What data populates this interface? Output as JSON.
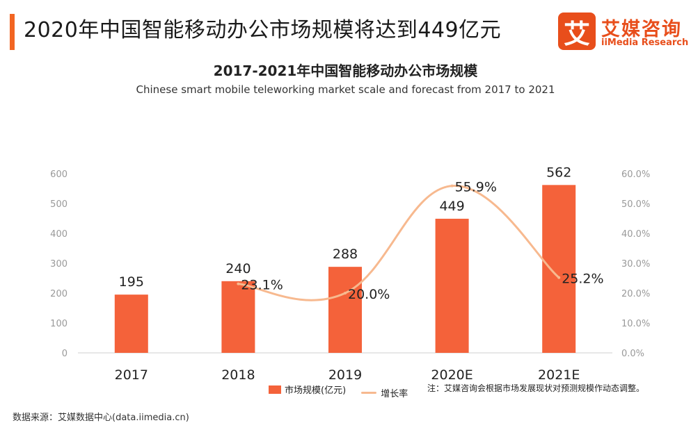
{
  "header": {
    "headline": "2020年中国智能移动办公市场规模将达到449亿元",
    "accent_color": "#f26522"
  },
  "logo": {
    "mark": "艾",
    "name_cn": "艾媒咨询",
    "name_en": "iiMedia Research",
    "color": "#e84e1b"
  },
  "chart_data": {
    "type": "bar",
    "title": "2017-2021年中国智能移动办公市场规模",
    "subtitle": "Chinese smart mobile teleworking market scale and forecast from 2017 to 2021",
    "categories": [
      "2017",
      "2018",
      "2019",
      "2020E",
      "2021E"
    ],
    "series": [
      {
        "name": "市场规模(亿元)",
        "type": "bar",
        "axis": "left",
        "values": [
          195,
          240,
          288,
          449,
          562
        ],
        "labels": [
          "195",
          "240",
          "288",
          "449",
          "562"
        ],
        "color": "#f4623a"
      },
      {
        "name": "增长率",
        "type": "line",
        "axis": "right",
        "values": [
          null,
          23.1,
          20.0,
          55.9,
          25.2
        ],
        "labels": [
          "",
          "23.1%",
          "20.0%",
          "55.9%",
          "25.2%"
        ],
        "color": "#f7b98f"
      }
    ],
    "y_left": {
      "min": 0,
      "max": 600,
      "ticks": [
        "0",
        "100",
        "200",
        "300",
        "400",
        "500",
        "600"
      ]
    },
    "y_right": {
      "min": 0,
      "max": 60,
      "ticks": [
        "0.0%",
        "10.0%",
        "20.0%",
        "30.0%",
        "40.0%",
        "50.0%",
        "60.0%"
      ]
    },
    "grid": false,
    "legend_position": "bottom",
    "note": "注：艾媒咨询会根据市场发展现状对预测规模作动态调整。"
  },
  "footer": {
    "source": "数据来源：艾媒数据中心(data.iimedia.cn)"
  }
}
